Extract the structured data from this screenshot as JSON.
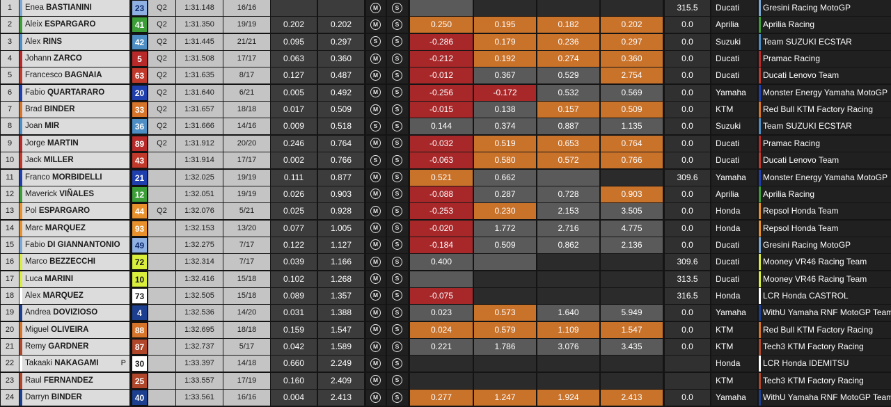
{
  "colors": {
    "sector_orange": "#c9722a",
    "sector_red": "#a8282a",
    "sector_grey": "#5a5a5a",
    "sector_dark": "#2b2b2b"
  },
  "tyre_icons": {
    "M": "medium-tyre-icon",
    "S": "soft-tyre-icon"
  },
  "riders": [
    {
      "pos": "1",
      "first": "Enea",
      "last": "BASTIANINI",
      "flag": "",
      "num": "23",
      "num_bg": "#8fb0e2",
      "num_fg": "#0d2a6e",
      "q": "Q2",
      "best": "1:31.148",
      "laps": "16/16",
      "gap": "",
      "interval": "",
      "tyre_front": "M",
      "tyre_rear": "S",
      "sectors": [
        "",
        "",
        "",
        ""
      ],
      "sector_colors": [
        "#5a5a5a",
        "#2b2b2b",
        "#2b2b2b",
        "#2b2b2b"
      ],
      "speed": "315.5",
      "maker": "Ducati",
      "team": "Gresini Racing MotoGP",
      "team_color": "#7aa7d6"
    },
    {
      "pos": "2",
      "first": "Aleix",
      "last": "ESPARGARO",
      "flag": "",
      "num": "41",
      "num_bg": "#3b9e37",
      "num_fg": "#ffffff",
      "q": "Q2",
      "best": "1:31.350",
      "laps": "19/19",
      "gap": "0.202",
      "interval": "0.202",
      "tyre_front": "M",
      "tyre_rear": "S",
      "sectors": [
        "0.250",
        "0.195",
        "0.182",
        "0.202"
      ],
      "sector_colors": [
        "#c9722a",
        "#c9722a",
        "#c9722a",
        "#c9722a"
      ],
      "speed": "0.0",
      "maker": "Aprilia",
      "team": "Aprilia Racing",
      "team_color": "#3b9e37"
    },
    {
      "pos": "3",
      "first": "Alex",
      "last": "RINS",
      "flag": "",
      "num": "42",
      "num_bg": "#4d8ec4",
      "num_fg": "#ffffff",
      "q": "Q2",
      "best": "1:31.445",
      "laps": "21/21",
      "gap": "0.095",
      "interval": "0.297",
      "tyre_front": "S",
      "tyre_rear": "S",
      "sectors": [
        "-0.286",
        "0.179",
        "0.236",
        "0.297"
      ],
      "sector_colors": [
        "#a8282a",
        "#c9722a",
        "#c9722a",
        "#c9722a"
      ],
      "speed": "0.0",
      "maker": "Suzuki",
      "team": "Team SUZUKI ECSTAR",
      "team_color": "#4d8ec4"
    },
    {
      "pos": "4",
      "first": "Johann",
      "last": "ZARCO",
      "flag": "",
      "num": "5",
      "num_bg": "#b82a2a",
      "num_fg": "#ffffff",
      "q": "Q2",
      "best": "1:31.508",
      "laps": "17/17",
      "gap": "0.063",
      "interval": "0.360",
      "tyre_front": "M",
      "tyre_rear": "S",
      "sectors": [
        "-0.212",
        "0.192",
        "0.274",
        "0.360"
      ],
      "sector_colors": [
        "#a8282a",
        "#c9722a",
        "#c9722a",
        "#c9722a"
      ],
      "speed": "0.0",
      "maker": "Ducati",
      "team": "Pramac Racing",
      "team_color": "#b82a2a"
    },
    {
      "pos": "5",
      "first": "Francesco",
      "last": "BAGNAIA",
      "flag": "",
      "num": "63",
      "num_bg": "#c0392b",
      "num_fg": "#ffffff",
      "q": "Q2",
      "best": "1:31.635",
      "laps": "8/17",
      "gap": "0.127",
      "interval": "0.487",
      "tyre_front": "M",
      "tyre_rear": "S",
      "sectors": [
        "-0.012",
        "0.367",
        "0.529",
        "2.754"
      ],
      "sector_colors": [
        "#a8282a",
        "#5a5a5a",
        "#5a5a5a",
        "#c9722a"
      ],
      "speed": "0.0",
      "maker": "Ducati",
      "team": "Ducati Lenovo Team",
      "team_color": "#c0392b"
    },
    {
      "pos": "6",
      "first": "Fabio",
      "last": "QUARTARARO",
      "flag": "",
      "num": "20",
      "num_bg": "#1f3fae",
      "num_fg": "#ffffff",
      "q": "Q2",
      "best": "1:31.640",
      "laps": "6/21",
      "gap": "0.005",
      "interval": "0.492",
      "tyre_front": "M",
      "tyre_rear": "S",
      "sectors": [
        "-0.256",
        "-0.172",
        "0.532",
        "0.569"
      ],
      "sector_colors": [
        "#a8282a",
        "#a8282a",
        "#5a5a5a",
        "#5a5a5a"
      ],
      "speed": "0.0",
      "maker": "Yamaha",
      "team": "Monster Energy Yamaha MotoGP",
      "team_color": "#1f3fae"
    },
    {
      "pos": "7",
      "first": "Brad",
      "last": "BINDER",
      "flag": "",
      "num": "33",
      "num_bg": "#d6742a",
      "num_fg": "#ffffff",
      "q": "Q2",
      "best": "1:31.657",
      "laps": "18/18",
      "gap": "0.017",
      "interval": "0.509",
      "tyre_front": "M",
      "tyre_rear": "S",
      "sectors": [
        "-0.015",
        "0.138",
        "0.157",
        "0.509"
      ],
      "sector_colors": [
        "#a8282a",
        "#5a5a5a",
        "#c9722a",
        "#c9722a"
      ],
      "speed": "0.0",
      "maker": "KTM",
      "team": "Red Bull KTM Factory Racing",
      "team_color": "#d6742a"
    },
    {
      "pos": "8",
      "first": "Joan",
      "last": "MIR",
      "flag": "",
      "num": "36",
      "num_bg": "#4d8ec4",
      "num_fg": "#ffffff",
      "q": "Q2",
      "best": "1:31.666",
      "laps": "14/16",
      "gap": "0.009",
      "interval": "0.518",
      "tyre_front": "S",
      "tyre_rear": "S",
      "sectors": [
        "0.144",
        "0.374",
        "0.887",
        "1.135"
      ],
      "sector_colors": [
        "#5a5a5a",
        "#5a5a5a",
        "#5a5a5a",
        "#5a5a5a"
      ],
      "speed": "0.0",
      "maker": "Suzuki",
      "team": "Team SUZUKI ECSTAR",
      "team_color": "#4d8ec4"
    },
    {
      "pos": "9",
      "first": "Jorge",
      "last": "MARTIN",
      "flag": "",
      "num": "89",
      "num_bg": "#b82a2a",
      "num_fg": "#ffffff",
      "q": "Q2",
      "best": "1:31.912",
      "laps": "20/20",
      "gap": "0.246",
      "interval": "0.764",
      "tyre_front": "M",
      "tyre_rear": "S",
      "sectors": [
        "-0.032",
        "0.519",
        "0.653",
        "0.764"
      ],
      "sector_colors": [
        "#a8282a",
        "#c9722a",
        "#c9722a",
        "#c9722a"
      ],
      "speed": "0.0",
      "maker": "Ducati",
      "team": "Pramac Racing",
      "team_color": "#b82a2a"
    },
    {
      "pos": "10",
      "first": "Jack",
      "last": "MILLER",
      "flag": "",
      "num": "43",
      "num_bg": "#c0392b",
      "num_fg": "#ffffff",
      "q": "",
      "best": "1:31.914",
      "laps": "17/17",
      "gap": "0.002",
      "interval": "0.766",
      "tyre_front": "S",
      "tyre_rear": "S",
      "sectors": [
        "-0.063",
        "0.580",
        "0.572",
        "0.766"
      ],
      "sector_colors": [
        "#a8282a",
        "#c9722a",
        "#c9722a",
        "#c9722a"
      ],
      "speed": "0.0",
      "maker": "Ducati",
      "team": "Ducati Lenovo Team",
      "team_color": "#c0392b"
    },
    {
      "pos": "11",
      "first": "Franco",
      "last": "MORBIDELLI",
      "flag": "",
      "num": "21",
      "num_bg": "#1f3fae",
      "num_fg": "#ffffff",
      "q": "",
      "best": "1:32.025",
      "laps": "19/19",
      "gap": "0.111",
      "interval": "0.877",
      "tyre_front": "M",
      "tyre_rear": "S",
      "sectors": [
        "0.521",
        "0.662",
        "",
        ""
      ],
      "sector_colors": [
        "#c9722a",
        "#5a5a5a",
        "#5a5a5a",
        "#2b2b2b"
      ],
      "speed": "309.6",
      "maker": "Yamaha",
      "team": "Monster Energy Yamaha MotoGP",
      "team_color": "#1f3fae"
    },
    {
      "pos": "12",
      "first": "Maverick",
      "last": "VIÑALES",
      "flag": "",
      "num": "12",
      "num_bg": "#3b9e37",
      "num_fg": "#ffffff",
      "q": "",
      "best": "1:32.051",
      "laps": "19/19",
      "gap": "0.026",
      "interval": "0.903",
      "tyre_front": "M",
      "tyre_rear": "S",
      "sectors": [
        "-0.088",
        "0.287",
        "0.728",
        "0.903"
      ],
      "sector_colors": [
        "#a8282a",
        "#5a5a5a",
        "#5a5a5a",
        "#c9722a"
      ],
      "speed": "0.0",
      "maker": "Aprilia",
      "team": "Aprilia Racing",
      "team_color": "#3b9e37"
    },
    {
      "pos": "13",
      "first": "Pol",
      "last": "ESPARGARO",
      "flag": "",
      "num": "44",
      "num_bg": "#e8912c",
      "num_fg": "#ffffff",
      "q": "Q2",
      "best": "1:32.076",
      "laps": "5/21",
      "gap": "0.025",
      "interval": "0.928",
      "tyre_front": "M",
      "tyre_rear": "S",
      "sectors": [
        "-0.253",
        "0.230",
        "2.153",
        "3.505"
      ],
      "sector_colors": [
        "#a8282a",
        "#c9722a",
        "#5a5a5a",
        "#5a5a5a"
      ],
      "speed": "0.0",
      "maker": "Honda",
      "team": "Repsol Honda Team",
      "team_color": "#e8912c"
    },
    {
      "pos": "14",
      "first": "Marc",
      "last": "MARQUEZ",
      "flag": "",
      "num": "93",
      "num_bg": "#e8912c",
      "num_fg": "#ffffff",
      "q": "",
      "best": "1:32.153",
      "laps": "13/20",
      "gap": "0.077",
      "interval": "1.005",
      "tyre_front": "M",
      "tyre_rear": "S",
      "sectors": [
        "-0.020",
        "1.772",
        "2.716",
        "4.775"
      ],
      "sector_colors": [
        "#a8282a",
        "#5a5a5a",
        "#5a5a5a",
        "#5a5a5a"
      ],
      "speed": "0.0",
      "maker": "Honda",
      "team": "Repsol Honda Team",
      "team_color": "#e8912c"
    },
    {
      "pos": "15",
      "first": "Fabio",
      "last": "DI GIANNANTONIO",
      "flag": "",
      "num": "49",
      "num_bg": "#8fb0e2",
      "num_fg": "#0d2a6e",
      "q": "",
      "best": "1:32.275",
      "laps": "7/17",
      "gap": "0.122",
      "interval": "1.127",
      "tyre_front": "M",
      "tyre_rear": "S",
      "sectors": [
        "-0.184",
        "0.509",
        "0.862",
        "2.136"
      ],
      "sector_colors": [
        "#a8282a",
        "#5a5a5a",
        "#5a5a5a",
        "#5a5a5a"
      ],
      "speed": "0.0",
      "maker": "Ducati",
      "team": "Gresini Racing MotoGP",
      "team_color": "#7aa7d6"
    },
    {
      "pos": "16",
      "first": "Marco",
      "last": "BEZZECCHI",
      "flag": "",
      "num": "72",
      "num_bg": "#d9ef3b",
      "num_fg": "#1a1a1a",
      "q": "",
      "best": "1:32.314",
      "laps": "7/17",
      "gap": "0.039",
      "interval": "1.166",
      "tyre_front": "M",
      "tyre_rear": "S",
      "sectors": [
        "0.400",
        "",
        "",
        ""
      ],
      "sector_colors": [
        "#5a5a5a",
        "#5a5a5a",
        "#2b2b2b",
        "#2b2b2b"
      ],
      "speed": "309.6",
      "maker": "Ducati",
      "team": "Mooney VR46 Racing Team",
      "team_color": "#d9ef3b"
    },
    {
      "pos": "17",
      "first": "Luca",
      "last": "MARINI",
      "flag": "",
      "num": "10",
      "num_bg": "#d9ef3b",
      "num_fg": "#1a1a1a",
      "q": "",
      "best": "1:32.416",
      "laps": "15/18",
      "gap": "0.102",
      "interval": "1.268",
      "tyre_front": "M",
      "tyre_rear": "S",
      "sectors": [
        "",
        "",
        "",
        ""
      ],
      "sector_colors": [
        "#5a5a5a",
        "#2b2b2b",
        "#2b2b2b",
        "#2b2b2b"
      ],
      "speed": "313.5",
      "maker": "Ducati",
      "team": "Mooney VR46 Racing Team",
      "team_color": "#d9ef3b"
    },
    {
      "pos": "18",
      "first": "Alex",
      "last": "MARQUEZ",
      "flag": "",
      "num": "73",
      "num_bg": "#ffffff",
      "num_fg": "#1a1a1a",
      "q": "",
      "best": "1:32.505",
      "laps": "15/18",
      "gap": "0.089",
      "interval": "1.357",
      "tyre_front": "M",
      "tyre_rear": "S",
      "sectors": [
        "-0.075",
        "",
        "",
        ""
      ],
      "sector_colors": [
        "#a8282a",
        "#2b2b2b",
        "#2b2b2b",
        "#2b2b2b"
      ],
      "speed": "316.5",
      "maker": "Honda",
      "team": "LCR Honda CASTROL",
      "team_color": "#ffffff"
    },
    {
      "pos": "19",
      "first": "Andrea",
      "last": "DOVIZIOSO",
      "flag": "",
      "num": "4",
      "num_bg": "#1c3f8f",
      "num_fg": "#ffffff",
      "q": "",
      "best": "1:32.536",
      "laps": "14/20",
      "gap": "0.031",
      "interval": "1.388",
      "tyre_front": "M",
      "tyre_rear": "S",
      "sectors": [
        "0.023",
        "0.573",
        "1.640",
        "5.949"
      ],
      "sector_colors": [
        "#5a5a5a",
        "#c9722a",
        "#5a5a5a",
        "#5a5a5a"
      ],
      "speed": "0.0",
      "maker": "Yamaha",
      "team": "WithU Yamaha RNF MotoGP Team",
      "team_color": "#1c3f8f"
    },
    {
      "pos": "20",
      "first": "Miguel",
      "last": "OLIVEIRA",
      "flag": "",
      "num": "88",
      "num_bg": "#d6742a",
      "num_fg": "#ffffff",
      "q": "",
      "best": "1:32.695",
      "laps": "18/18",
      "gap": "0.159",
      "interval": "1.547",
      "tyre_front": "M",
      "tyre_rear": "S",
      "sectors": [
        "0.024",
        "0.579",
        "1.109",
        "1.547"
      ],
      "sector_colors": [
        "#c9722a",
        "#c9722a",
        "#c9722a",
        "#c9722a"
      ],
      "speed": "0.0",
      "maker": "KTM",
      "team": "Red Bull KTM Factory Racing",
      "team_color": "#d6742a"
    },
    {
      "pos": "21",
      "first": "Remy",
      "last": "GARDNER",
      "flag": "",
      "num": "87",
      "num_bg": "#b0462a",
      "num_fg": "#ffffff",
      "q": "",
      "best": "1:32.737",
      "laps": "5/17",
      "gap": "0.042",
      "interval": "1.589",
      "tyre_front": "M",
      "tyre_rear": "S",
      "sectors": [
        "0.221",
        "1.786",
        "3.076",
        "3.435"
      ],
      "sector_colors": [
        "#5a5a5a",
        "#5a5a5a",
        "#5a5a5a",
        "#5a5a5a"
      ],
      "speed": "0.0",
      "maker": "KTM",
      "team": "Tech3 KTM Factory Racing",
      "team_color": "#b0462a"
    },
    {
      "pos": "22",
      "first": "Takaaki",
      "last": "NAKAGAMI",
      "flag": "P",
      "num": "30",
      "num_bg": "#ffffff",
      "num_fg": "#1a1a1a",
      "q": "",
      "best": "1:33.397",
      "laps": "14/18",
      "gap": "0.660",
      "interval": "2.249",
      "tyre_front": "M",
      "tyre_rear": "S",
      "sectors": [
        "",
        "",
        "",
        ""
      ],
      "sector_colors": [
        "#2b2b2b",
        "#2b2b2b",
        "#2b2b2b",
        "#2b2b2b"
      ],
      "speed": "",
      "maker": "Honda",
      "team": "LCR Honda IDEMITSU",
      "team_color": "#ffffff"
    },
    {
      "pos": "23",
      "first": "Raul",
      "last": "FERNANDEZ",
      "flag": "",
      "num": "25",
      "num_bg": "#b0462a",
      "num_fg": "#ffffff",
      "q": "",
      "best": "1:33.557",
      "laps": "17/19",
      "gap": "0.160",
      "interval": "2.409",
      "tyre_front": "M",
      "tyre_rear": "S",
      "sectors": [
        "",
        "",
        "",
        ""
      ],
      "sector_colors": [
        "#2b2b2b",
        "#2b2b2b",
        "#2b2b2b",
        "#2b2b2b"
      ],
      "speed": "",
      "maker": "KTM",
      "team": "Tech3 KTM Factory Racing",
      "team_color": "#b0462a"
    },
    {
      "pos": "24",
      "first": "Darryn",
      "last": "BINDER",
      "flag": "",
      "num": "40",
      "num_bg": "#1c3f8f",
      "num_fg": "#ffffff",
      "q": "",
      "best": "1:33.561",
      "laps": "16/16",
      "gap": "0.004",
      "interval": "2.413",
      "tyre_front": "M",
      "tyre_rear": "S",
      "sectors": [
        "0.277",
        "1.247",
        "1.924",
        "2.413"
      ],
      "sector_colors": [
        "#c9722a",
        "#c9722a",
        "#c9722a",
        "#c9722a"
      ],
      "speed": "0.0",
      "maker": "Yamaha",
      "team": "WithU Yamaha RNF MotoGP Team",
      "team_color": "#1c3f8f"
    }
  ]
}
